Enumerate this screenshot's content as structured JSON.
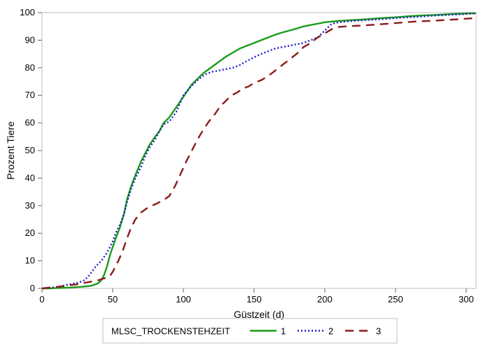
{
  "chart": {
    "type": "line",
    "background_color": "#ffffff",
    "border_color": "#bfbfbf",
    "xlabel": "Güstzeit (d)",
    "ylabel": "Prozent Tiere",
    "label_fontsize": 14,
    "tick_fontsize": 13,
    "tick_color": "#000000",
    "xlim": [
      0,
      307
    ],
    "ylim": [
      0,
      100
    ],
    "x_ticks": [
      0,
      50,
      100,
      150,
      200,
      250,
      300
    ],
    "y_ticks": [
      0,
      10,
      20,
      30,
      40,
      50,
      60,
      70,
      80,
      90,
      100
    ],
    "grid": false,
    "legend": {
      "title": "MLSC_TROCKENSTEHZEIT",
      "position": "bottom",
      "items": [
        {
          "label": "1",
          "color": "#1a9b1a",
          "dash": "solid"
        },
        {
          "label": "2",
          "color": "#1a1ac8",
          "dash": "2,3"
        },
        {
          "label": "3",
          "color": "#8b1a1a",
          "dash": "12,8"
        }
      ]
    },
    "series": [
      {
        "name": "1",
        "color": "#1a9b1a",
        "dash": "none",
        "line_width": 2.4,
        "data": [
          [
            0,
            0
          ],
          [
            5,
            0
          ],
          [
            10,
            0.1
          ],
          [
            15,
            0.2
          ],
          [
            20,
            0.3
          ],
          [
            25,
            0.5
          ],
          [
            28,
            0.6
          ],
          [
            30,
            0.7
          ],
          [
            33,
            0.8
          ],
          [
            35,
            1
          ],
          [
            38,
            1.5
          ],
          [
            40,
            2
          ],
          [
            42,
            3
          ],
          [
            44,
            5
          ],
          [
            46,
            8
          ],
          [
            48,
            12
          ],
          [
            50,
            15
          ],
          [
            52,
            18
          ],
          [
            55,
            22
          ],
          [
            58,
            27
          ],
          [
            60,
            32
          ],
          [
            63,
            37
          ],
          [
            66,
            41
          ],
          [
            70,
            46
          ],
          [
            73,
            49
          ],
          [
            76,
            52
          ],
          [
            80,
            55
          ],
          [
            83,
            57
          ],
          [
            86,
            60
          ],
          [
            90,
            62
          ],
          [
            94,
            65
          ],
          [
            98,
            68
          ],
          [
            102,
            71
          ],
          [
            106,
            74
          ],
          [
            110,
            76
          ],
          [
            114,
            78
          ],
          [
            118,
            79.5
          ],
          [
            122,
            81
          ],
          [
            126,
            82.5
          ],
          [
            130,
            84
          ],
          [
            135,
            85.5
          ],
          [
            140,
            87
          ],
          [
            145,
            88
          ],
          [
            150,
            89
          ],
          [
            155,
            90
          ],
          [
            160,
            91
          ],
          [
            165,
            92
          ],
          [
            170,
            92.8
          ],
          [
            175,
            93.5
          ],
          [
            180,
            94.2
          ],
          [
            185,
            95
          ],
          [
            190,
            95.5
          ],
          [
            195,
            96
          ],
          [
            200,
            96.5
          ],
          [
            210,
            97
          ],
          [
            220,
            97.3
          ],
          [
            230,
            97.6
          ],
          [
            240,
            98
          ],
          [
            250,
            98.3
          ],
          [
            260,
            98.7
          ],
          [
            270,
            99
          ],
          [
            280,
            99.2
          ],
          [
            290,
            99.5
          ],
          [
            300,
            99.7
          ],
          [
            307,
            99.8
          ]
        ]
      },
      {
        "name": "2",
        "color": "#1a1ac8",
        "dash": "2,3",
        "line_width": 2.4,
        "data": [
          [
            0,
            0
          ],
          [
            5,
            0.2
          ],
          [
            10,
            0.5
          ],
          [
            15,
            1
          ],
          [
            20,
            1.5
          ],
          [
            25,
            2
          ],
          [
            28,
            2.5
          ],
          [
            30,
            3
          ],
          [
            33,
            4.5
          ],
          [
            36,
            6.5
          ],
          [
            38,
            8
          ],
          [
            40,
            9
          ],
          [
            42,
            10
          ],
          [
            44,
            11.5
          ],
          [
            46,
            13
          ],
          [
            48,
            15
          ],
          [
            50,
            17
          ],
          [
            52,
            20
          ],
          [
            55,
            23
          ],
          [
            58,
            27
          ],
          [
            60,
            31
          ],
          [
            63,
            36
          ],
          [
            66,
            40
          ],
          [
            70,
            44
          ],
          [
            73,
            48
          ],
          [
            76,
            51
          ],
          [
            80,
            54
          ],
          [
            83,
            57
          ],
          [
            86,
            59.5
          ],
          [
            90,
            60.5
          ],
          [
            95,
            64
          ],
          [
            100,
            70
          ],
          [
            105,
            73
          ],
          [
            110,
            75.5
          ],
          [
            115,
            77.5
          ],
          [
            120,
            78.5
          ],
          [
            125,
            79
          ],
          [
            130,
            79.5
          ],
          [
            135,
            80
          ],
          [
            140,
            81
          ],
          [
            145,
            82.5
          ],
          [
            150,
            83.8
          ],
          [
            155,
            85
          ],
          [
            160,
            86
          ],
          [
            165,
            87
          ],
          [
            170,
            87.5
          ],
          [
            175,
            88
          ],
          [
            180,
            88.5
          ],
          [
            185,
            89
          ],
          [
            190,
            90
          ],
          [
            195,
            91
          ],
          [
            200,
            93.5
          ],
          [
            205,
            96
          ],
          [
            210,
            96.5
          ],
          [
            220,
            97
          ],
          [
            230,
            97.3
          ],
          [
            240,
            97.6
          ],
          [
            250,
            98
          ],
          [
            260,
            98.3
          ],
          [
            270,
            98.6
          ],
          [
            280,
            99
          ],
          [
            290,
            99.2
          ],
          [
            300,
            99.5
          ],
          [
            307,
            99.7
          ]
        ]
      },
      {
        "name": "3",
        "color": "#8b1a1a",
        "dash": "12,8",
        "line_width": 2.4,
        "data": [
          [
            0,
            0
          ],
          [
            5,
            0.3
          ],
          [
            10,
            0.5
          ],
          [
            15,
            0.8
          ],
          [
            20,
            1.2
          ],
          [
            25,
            1.5
          ],
          [
            30,
            2
          ],
          [
            35,
            2.5
          ],
          [
            40,
            3
          ],
          [
            43,
            3.5
          ],
          [
            46,
            4
          ],
          [
            48,
            4.5
          ],
          [
            50,
            6
          ],
          [
            52,
            8
          ],
          [
            54,
            10
          ],
          [
            57,
            13.5
          ],
          [
            60,
            18
          ],
          [
            63,
            22
          ],
          [
            66,
            25
          ],
          [
            70,
            27.5
          ],
          [
            74,
            29
          ],
          [
            78,
            30
          ],
          [
            82,
            31
          ],
          [
            86,
            32
          ],
          [
            90,
            33.5
          ],
          [
            94,
            37
          ],
          [
            98,
            41.5
          ],
          [
            102,
            46
          ],
          [
            106,
            50
          ],
          [
            110,
            54
          ],
          [
            114,
            57.5
          ],
          [
            118,
            60.5
          ],
          [
            122,
            63
          ],
          [
            126,
            66
          ],
          [
            130,
            68
          ],
          [
            134,
            70
          ],
          [
            138,
            71
          ],
          [
            142,
            72.5
          ],
          [
            146,
            73.2
          ],
          [
            150,
            74.5
          ],
          [
            155,
            75.5
          ],
          [
            160,
            77
          ],
          [
            165,
            79
          ],
          [
            170,
            81
          ],
          [
            175,
            83
          ],
          [
            180,
            85
          ],
          [
            185,
            87.5
          ],
          [
            190,
            89
          ],
          [
            195,
            91
          ],
          [
            200,
            92.5
          ],
          [
            205,
            94
          ],
          [
            210,
            94.8
          ],
          [
            215,
            95
          ],
          [
            225,
            95.3
          ],
          [
            235,
            95.6
          ],
          [
            245,
            96
          ],
          [
            255,
            96.4
          ],
          [
            265,
            96.8
          ],
          [
            275,
            97
          ],
          [
            285,
            97.3
          ],
          [
            295,
            97.6
          ],
          [
            300,
            97.8
          ],
          [
            307,
            98
          ]
        ]
      }
    ]
  }
}
